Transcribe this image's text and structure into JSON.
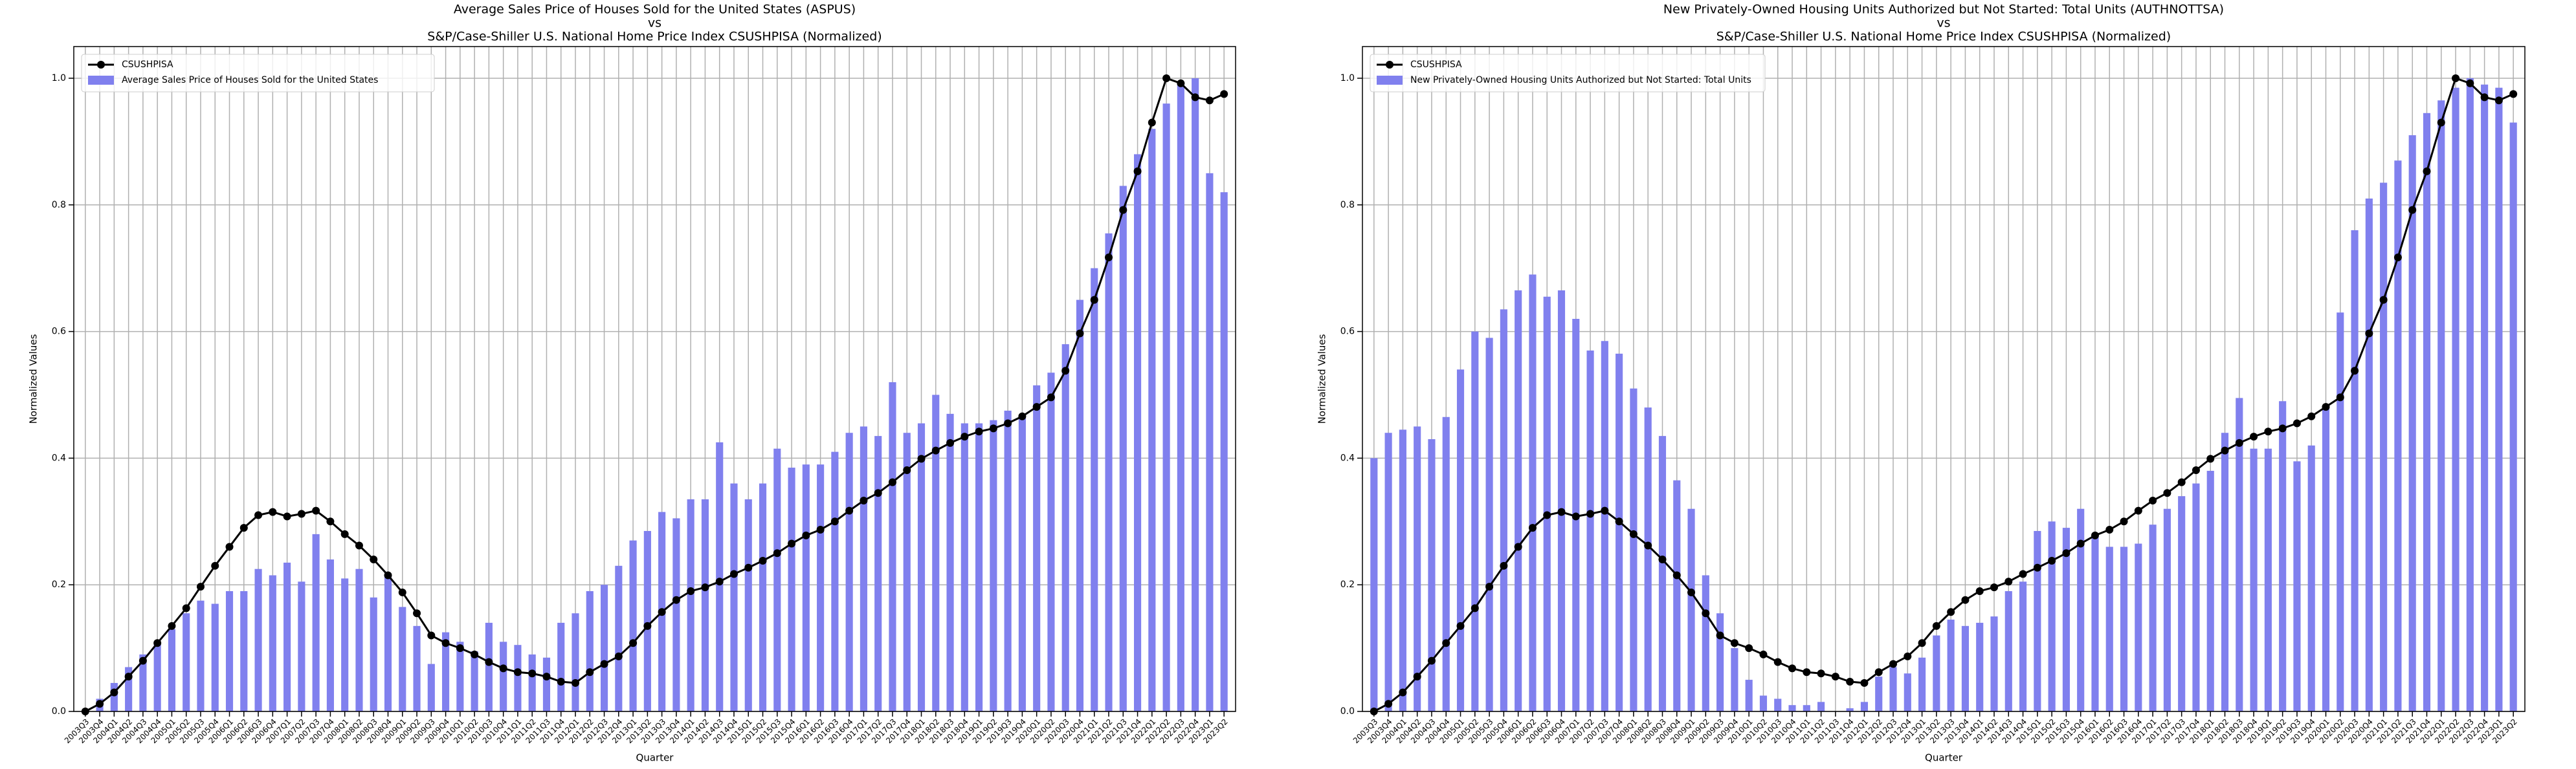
{
  "chart_data": [
    {
      "type": "bar_line",
      "title": [
        "Average Sales Price of Houses Sold for the United States (ASPUS)",
        "vs",
        "S&P/Case-Shiller U.S. National Home Price Index CSUSHPISA (Normalized)"
      ],
      "x_label": "Quarter",
      "y_label": "Normalized Values",
      "categories": [
        "2003Q3",
        "2003Q4",
        "2004Q1",
        "2004Q2",
        "2004Q3",
        "2004Q4",
        "2005Q1",
        "2005Q2",
        "2005Q3",
        "2005Q4",
        "2006Q1",
        "2006Q2",
        "2006Q3",
        "2006Q4",
        "2007Q1",
        "2007Q2",
        "2007Q3",
        "2007Q4",
        "2008Q1",
        "2008Q2",
        "2008Q3",
        "2008Q4",
        "2009Q1",
        "2009Q2",
        "2009Q3",
        "2009Q4",
        "2010Q1",
        "2010Q2",
        "2010Q3",
        "2010Q4",
        "2011Q1",
        "2011Q2",
        "2011Q3",
        "2011Q4",
        "2012Q1",
        "2012Q2",
        "2012Q3",
        "2012Q4",
        "2013Q1",
        "2013Q2",
        "2013Q3",
        "2013Q4",
        "2014Q1",
        "2014Q2",
        "2014Q3",
        "2014Q4",
        "2015Q1",
        "2015Q2",
        "2015Q3",
        "2015Q4",
        "2016Q1",
        "2016Q2",
        "2016Q3",
        "2016Q4",
        "2017Q1",
        "2017Q2",
        "2017Q3",
        "2017Q4",
        "2018Q1",
        "2018Q2",
        "2018Q3",
        "2018Q4",
        "2019Q1",
        "2019Q2",
        "2019Q3",
        "2019Q4",
        "2020Q1",
        "2020Q2",
        "2020Q3",
        "2020Q4",
        "2021Q1",
        "2021Q2",
        "2021Q3",
        "2021Q4",
        "2022Q1",
        "2022Q2",
        "2022Q3",
        "2022Q4",
        "2023Q1",
        "2023Q2"
      ],
      "series": [
        {
          "name": "CSUSHPISA",
          "kind": "line",
          "color": "#000000",
          "values": [
            0.0,
            0.012,
            0.03,
            0.055,
            0.08,
            0.108,
            0.135,
            0.163,
            0.197,
            0.23,
            0.26,
            0.29,
            0.31,
            0.315,
            0.308,
            0.312,
            0.317,
            0.3,
            0.28,
            0.262,
            0.24,
            0.215,
            0.188,
            0.155,
            0.12,
            0.108,
            0.1,
            0.09,
            0.078,
            0.068,
            0.062,
            0.06,
            0.055,
            0.047,
            0.045,
            0.062,
            0.075,
            0.087,
            0.108,
            0.135,
            0.157,
            0.176,
            0.19,
            0.196,
            0.205,
            0.217,
            0.227,
            0.238,
            0.25,
            0.265,
            0.278,
            0.287,
            0.3,
            0.317,
            0.333,
            0.345,
            0.362,
            0.381,
            0.399,
            0.412,
            0.424,
            0.434,
            0.442,
            0.447,
            0.455,
            0.466,
            0.481,
            0.496,
            0.538,
            0.597,
            0.65,
            0.717,
            0.792,
            0.853,
            0.93,
            1.0,
            0.992,
            0.97,
            0.965,
            0.975
          ]
        },
        {
          "name": "Average Sales Price of Houses Sold for the United States",
          "kind": "bar",
          "color": "#8080ee",
          "values": [
            0.0,
            0.02,
            0.045,
            0.07,
            0.09,
            0.11,
            0.13,
            0.155,
            0.175,
            0.17,
            0.19,
            0.19,
            0.225,
            0.215,
            0.235,
            0.205,
            0.28,
            0.24,
            0.21,
            0.225,
            0.18,
            0.215,
            0.165,
            0.135,
            0.075,
            0.125,
            0.11,
            0.095,
            0.14,
            0.11,
            0.105,
            0.09,
            0.085,
            0.14,
            0.155,
            0.19,
            0.2,
            0.23,
            0.27,
            0.285,
            0.315,
            0.305,
            0.335,
            0.335,
            0.425,
            0.36,
            0.335,
            0.36,
            0.415,
            0.385,
            0.39,
            0.39,
            0.41,
            0.44,
            0.45,
            0.435,
            0.52,
            0.44,
            0.455,
            0.5,
            0.47,
            0.455,
            0.455,
            0.46,
            0.475,
            0.465,
            0.515,
            0.535,
            0.58,
            0.65,
            0.7,
            0.755,
            0.83,
            0.88,
            0.92,
            0.96,
            0.99,
            1.0,
            0.85,
            0.82
          ]
        }
      ],
      "ylim": [
        0,
        1.05
      ],
      "yticks": [
        {
          "value": 0,
          "label": "0.0"
        },
        0.2,
        0.4,
        0.6,
        0.8,
        {
          "value": 1,
          "label": "1.0"
        }
      ],
      "grid": true,
      "legend": "upper left"
    },
    {
      "type": "bar_line",
      "title": [
        "New Privately-Owned Housing Units Authorized but Not Started: Total Units (AUTHNOTTSA)",
        "vs",
        "S&P/Case-Shiller U.S. National Home Price Index CSUSHPISA (Normalized)"
      ],
      "x_label": "Quarter",
      "y_label": "Normalized Values",
      "categories": [
        "2003Q3",
        "2003Q4",
        "2004Q1",
        "2004Q2",
        "2004Q3",
        "2004Q4",
        "2005Q1",
        "2005Q2",
        "2005Q3",
        "2005Q4",
        "2006Q1",
        "2006Q2",
        "2006Q3",
        "2006Q4",
        "2007Q1",
        "2007Q2",
        "2007Q3",
        "2007Q4",
        "2008Q1",
        "2008Q2",
        "2008Q3",
        "2008Q4",
        "2009Q1",
        "2009Q2",
        "2009Q3",
        "2009Q4",
        "2010Q1",
        "2010Q2",
        "2010Q3",
        "2010Q4",
        "2011Q1",
        "2011Q2",
        "2011Q3",
        "2011Q4",
        "2012Q1",
        "2012Q2",
        "2012Q3",
        "2012Q4",
        "2013Q1",
        "2013Q2",
        "2013Q3",
        "2013Q4",
        "2014Q1",
        "2014Q2",
        "2014Q3",
        "2014Q4",
        "2015Q1",
        "2015Q2",
        "2015Q3",
        "2015Q4",
        "2016Q1",
        "2016Q2",
        "2016Q3",
        "2016Q4",
        "2017Q1",
        "2017Q2",
        "2017Q3",
        "2017Q4",
        "2018Q1",
        "2018Q2",
        "2018Q3",
        "2018Q4",
        "2019Q1",
        "2019Q2",
        "2019Q3",
        "2019Q4",
        "2020Q1",
        "2020Q2",
        "2020Q3",
        "2020Q4",
        "2021Q1",
        "2021Q2",
        "2021Q3",
        "2021Q4",
        "2022Q1",
        "2022Q2",
        "2022Q3",
        "2022Q4",
        "2023Q1",
        "2023Q2"
      ],
      "series": [
        {
          "name": "CSUSHPISA",
          "kind": "line",
          "color": "#000000",
          "values": [
            0.0,
            0.012,
            0.03,
            0.055,
            0.08,
            0.108,
            0.135,
            0.163,
            0.197,
            0.23,
            0.26,
            0.29,
            0.31,
            0.315,
            0.308,
            0.312,
            0.317,
            0.3,
            0.28,
            0.262,
            0.24,
            0.215,
            0.188,
            0.155,
            0.12,
            0.108,
            0.1,
            0.09,
            0.078,
            0.068,
            0.062,
            0.06,
            0.055,
            0.047,
            0.045,
            0.062,
            0.075,
            0.087,
            0.108,
            0.135,
            0.157,
            0.176,
            0.19,
            0.196,
            0.205,
            0.217,
            0.227,
            0.238,
            0.25,
            0.265,
            0.278,
            0.287,
            0.3,
            0.317,
            0.333,
            0.345,
            0.362,
            0.381,
            0.399,
            0.412,
            0.424,
            0.434,
            0.442,
            0.447,
            0.455,
            0.466,
            0.481,
            0.496,
            0.538,
            0.597,
            0.65,
            0.717,
            0.792,
            0.853,
            0.93,
            1.0,
            0.992,
            0.97,
            0.965,
            0.975
          ]
        },
        {
          "name": "New Privately-Owned Housing Units Authorized but Not Started: Total Units",
          "kind": "bar",
          "color": "#8080ee",
          "values": [
            0.4,
            0.44,
            0.445,
            0.45,
            0.43,
            0.465,
            0.54,
            0.6,
            0.59,
            0.635,
            0.665,
            0.69,
            0.655,
            0.665,
            0.62,
            0.57,
            0.585,
            0.565,
            0.51,
            0.48,
            0.435,
            0.365,
            0.32,
            0.215,
            0.155,
            0.1,
            0.05,
            0.025,
            0.02,
            0.01,
            0.01,
            0.015,
            0.0,
            0.005,
            0.015,
            0.055,
            0.07,
            0.06,
            0.085,
            0.12,
            0.145,
            0.135,
            0.14,
            0.15,
            0.19,
            0.205,
            0.285,
            0.3,
            0.29,
            0.32,
            0.275,
            0.26,
            0.26,
            0.265,
            0.295,
            0.32,
            0.34,
            0.36,
            0.38,
            0.44,
            0.495,
            0.415,
            0.415,
            0.49,
            0.395,
            0.42,
            0.48,
            0.63,
            0.76,
            0.81,
            0.835,
            0.87,
            0.91,
            0.945,
            0.965,
            0.985,
            1.0,
            0.99,
            0.985,
            0.93
          ]
        }
      ],
      "ylim": [
        0,
        1.05
      ],
      "yticks": [
        {
          "value": 0,
          "label": "0.0"
        },
        0.2,
        0.4,
        0.6,
        0.8,
        {
          "value": 1,
          "label": "1.0"
        }
      ],
      "grid": true,
      "legend": "upper left"
    }
  ]
}
